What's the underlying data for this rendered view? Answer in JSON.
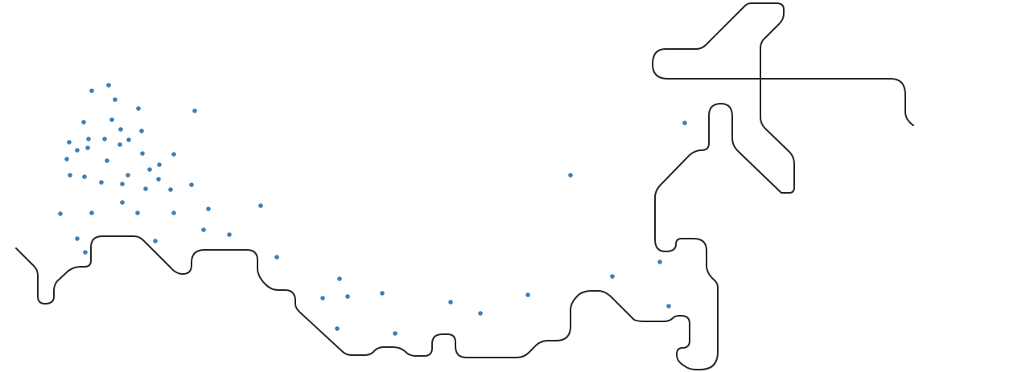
{
  "colors": {
    "background": "#ffffff",
    "route_line": "#262626",
    "point": "#3d7fb8"
  },
  "paths": [
    {
      "name": "route-main"
    },
    {
      "name": "route-upper"
    }
  ],
  "point_count": 56
}
